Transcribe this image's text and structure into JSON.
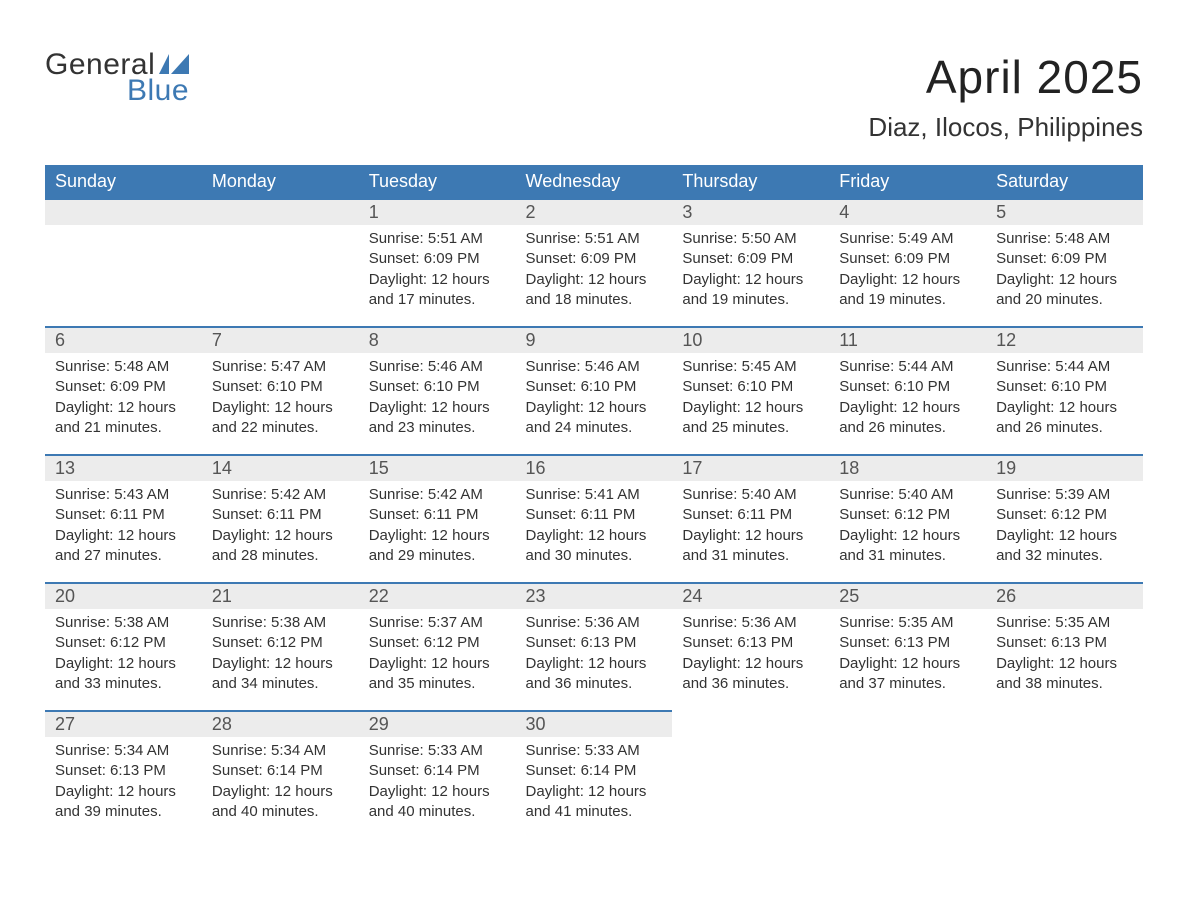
{
  "logo": {
    "line1": "General",
    "line2": "Blue"
  },
  "title": "April 2025",
  "location": "Diaz, Ilocos, Philippines",
  "colors": {
    "header_bg": "#3d79b3",
    "header_text": "#ffffff",
    "daynum_bg": "#ececec",
    "row_border": "#3d79b3",
    "body_text": "#333333",
    "page_bg": "#ffffff",
    "logo_blue": "#3d79b3"
  },
  "layout": {
    "type": "calendar-table",
    "columns": 7,
    "rows": 5,
    "title_fontsize": 46,
    "location_fontsize": 26,
    "weekday_fontsize": 18,
    "daynum_fontsize": 18,
    "body_fontsize": 15
  },
  "weekdays": [
    "Sunday",
    "Monday",
    "Tuesday",
    "Wednesday",
    "Thursday",
    "Friday",
    "Saturday"
  ],
  "weeks": [
    [
      null,
      null,
      {
        "day": "1",
        "sunrise": "Sunrise: 5:51 AM",
        "sunset": "Sunset: 6:09 PM",
        "daylight": "Daylight: 12 hours and 17 minutes."
      },
      {
        "day": "2",
        "sunrise": "Sunrise: 5:51 AM",
        "sunset": "Sunset: 6:09 PM",
        "daylight": "Daylight: 12 hours and 18 minutes."
      },
      {
        "day": "3",
        "sunrise": "Sunrise: 5:50 AM",
        "sunset": "Sunset: 6:09 PM",
        "daylight": "Daylight: 12 hours and 19 minutes."
      },
      {
        "day": "4",
        "sunrise": "Sunrise: 5:49 AM",
        "sunset": "Sunset: 6:09 PM",
        "daylight": "Daylight: 12 hours and 19 minutes."
      },
      {
        "day": "5",
        "sunrise": "Sunrise: 5:48 AM",
        "sunset": "Sunset: 6:09 PM",
        "daylight": "Daylight: 12 hours and 20 minutes."
      }
    ],
    [
      {
        "day": "6",
        "sunrise": "Sunrise: 5:48 AM",
        "sunset": "Sunset: 6:09 PM",
        "daylight": "Daylight: 12 hours and 21 minutes."
      },
      {
        "day": "7",
        "sunrise": "Sunrise: 5:47 AM",
        "sunset": "Sunset: 6:10 PM",
        "daylight": "Daylight: 12 hours and 22 minutes."
      },
      {
        "day": "8",
        "sunrise": "Sunrise: 5:46 AM",
        "sunset": "Sunset: 6:10 PM",
        "daylight": "Daylight: 12 hours and 23 minutes."
      },
      {
        "day": "9",
        "sunrise": "Sunrise: 5:46 AM",
        "sunset": "Sunset: 6:10 PM",
        "daylight": "Daylight: 12 hours and 24 minutes."
      },
      {
        "day": "10",
        "sunrise": "Sunrise: 5:45 AM",
        "sunset": "Sunset: 6:10 PM",
        "daylight": "Daylight: 12 hours and 25 minutes."
      },
      {
        "day": "11",
        "sunrise": "Sunrise: 5:44 AM",
        "sunset": "Sunset: 6:10 PM",
        "daylight": "Daylight: 12 hours and 26 minutes."
      },
      {
        "day": "12",
        "sunrise": "Sunrise: 5:44 AM",
        "sunset": "Sunset: 6:10 PM",
        "daylight": "Daylight: 12 hours and 26 minutes."
      }
    ],
    [
      {
        "day": "13",
        "sunrise": "Sunrise: 5:43 AM",
        "sunset": "Sunset: 6:11 PM",
        "daylight": "Daylight: 12 hours and 27 minutes."
      },
      {
        "day": "14",
        "sunrise": "Sunrise: 5:42 AM",
        "sunset": "Sunset: 6:11 PM",
        "daylight": "Daylight: 12 hours and 28 minutes."
      },
      {
        "day": "15",
        "sunrise": "Sunrise: 5:42 AM",
        "sunset": "Sunset: 6:11 PM",
        "daylight": "Daylight: 12 hours and 29 minutes."
      },
      {
        "day": "16",
        "sunrise": "Sunrise: 5:41 AM",
        "sunset": "Sunset: 6:11 PM",
        "daylight": "Daylight: 12 hours and 30 minutes."
      },
      {
        "day": "17",
        "sunrise": "Sunrise: 5:40 AM",
        "sunset": "Sunset: 6:11 PM",
        "daylight": "Daylight: 12 hours and 31 minutes."
      },
      {
        "day": "18",
        "sunrise": "Sunrise: 5:40 AM",
        "sunset": "Sunset: 6:12 PM",
        "daylight": "Daylight: 12 hours and 31 minutes."
      },
      {
        "day": "19",
        "sunrise": "Sunrise: 5:39 AM",
        "sunset": "Sunset: 6:12 PM",
        "daylight": "Daylight: 12 hours and 32 minutes."
      }
    ],
    [
      {
        "day": "20",
        "sunrise": "Sunrise: 5:38 AM",
        "sunset": "Sunset: 6:12 PM",
        "daylight": "Daylight: 12 hours and 33 minutes."
      },
      {
        "day": "21",
        "sunrise": "Sunrise: 5:38 AM",
        "sunset": "Sunset: 6:12 PM",
        "daylight": "Daylight: 12 hours and 34 minutes."
      },
      {
        "day": "22",
        "sunrise": "Sunrise: 5:37 AM",
        "sunset": "Sunset: 6:12 PM",
        "daylight": "Daylight: 12 hours and 35 minutes."
      },
      {
        "day": "23",
        "sunrise": "Sunrise: 5:36 AM",
        "sunset": "Sunset: 6:13 PM",
        "daylight": "Daylight: 12 hours and 36 minutes."
      },
      {
        "day": "24",
        "sunrise": "Sunrise: 5:36 AM",
        "sunset": "Sunset: 6:13 PM",
        "daylight": "Daylight: 12 hours and 36 minutes."
      },
      {
        "day": "25",
        "sunrise": "Sunrise: 5:35 AM",
        "sunset": "Sunset: 6:13 PM",
        "daylight": "Daylight: 12 hours and 37 minutes."
      },
      {
        "day": "26",
        "sunrise": "Sunrise: 5:35 AM",
        "sunset": "Sunset: 6:13 PM",
        "daylight": "Daylight: 12 hours and 38 minutes."
      }
    ],
    [
      {
        "day": "27",
        "sunrise": "Sunrise: 5:34 AM",
        "sunset": "Sunset: 6:13 PM",
        "daylight": "Daylight: 12 hours and 39 minutes."
      },
      {
        "day": "28",
        "sunrise": "Sunrise: 5:34 AM",
        "sunset": "Sunset: 6:14 PM",
        "daylight": "Daylight: 12 hours and 40 minutes."
      },
      {
        "day": "29",
        "sunrise": "Sunrise: 5:33 AM",
        "sunset": "Sunset: 6:14 PM",
        "daylight": "Daylight: 12 hours and 40 minutes."
      },
      {
        "day": "30",
        "sunrise": "Sunrise: 5:33 AM",
        "sunset": "Sunset: 6:14 PM",
        "daylight": "Daylight: 12 hours and 41 minutes."
      },
      null,
      null,
      null
    ]
  ]
}
